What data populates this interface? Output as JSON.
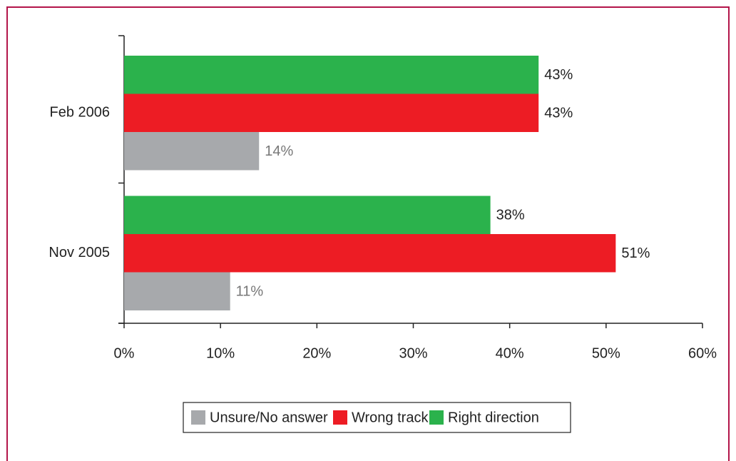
{
  "chart_data": {
    "type": "hbar",
    "categories": [
      "Feb 2006",
      "Nov 2005"
    ],
    "series": [
      {
        "name": "Unsure/No answer",
        "color": "#a7a9ac",
        "values": [
          14,
          11
        ],
        "value_labels": [
          "14%",
          "11%"
        ]
      },
      {
        "name": "Wrong track",
        "color": "#ed1c24",
        "values": [
          43,
          51
        ],
        "value_labels": [
          "43%",
          "51%"
        ]
      },
      {
        "name": "Right direction",
        "color": "#2bb24c",
        "values": [
          43,
          38
        ],
        "value_labels": [
          "43%",
          "38%"
        ]
      }
    ],
    "xlim": [
      0,
      60
    ],
    "xticks": [
      {
        "value": 0,
        "label": "0%"
      },
      {
        "value": 10,
        "label": "10%"
      },
      {
        "value": 20,
        "label": "20%"
      },
      {
        "value": 30,
        "label": "30%"
      },
      {
        "value": 40,
        "label": "40%"
      },
      {
        "value": 50,
        "label": "50%"
      },
      {
        "value": 60,
        "label": "60%"
      }
    ],
    "legend": "bottom"
  }
}
